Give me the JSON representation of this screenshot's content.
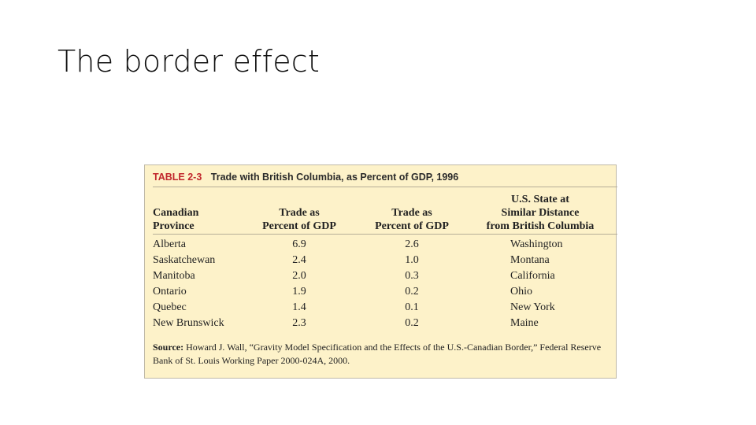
{
  "slide": {
    "title": "The border effect"
  },
  "table": {
    "label": "TABLE 2-3",
    "title": "Trade with British Columbia, as Percent of GDP, 1996",
    "columns": [
      [
        "Canadian",
        "Province"
      ],
      [
        "Trade as",
        "Percent of GDP"
      ],
      [
        "Trade as",
        "Percent of GDP"
      ],
      [
        "U.S. State at",
        "Similar Distance",
        "from British Columbia"
      ]
    ],
    "rows": [
      [
        "Alberta",
        "6.9",
        "2.6",
        "Washington"
      ],
      [
        "Saskatchewan",
        "2.4",
        "1.0",
        "Montana"
      ],
      [
        "Manitoba",
        "2.0",
        "0.3",
        "California"
      ],
      [
        "Ontario",
        "1.9",
        "0.2",
        "Ohio"
      ],
      [
        "Quebec",
        "1.4",
        "0.1",
        "New York"
      ],
      [
        "New Brunswick",
        "2.3",
        "0.2",
        "Maine"
      ]
    ],
    "source_label": "Source:",
    "source_text": "Howard J. Wall, “Gravity Model Specification and the Effects of the U.S.-Canadian Border,” Federal Reserve Bank of St. Louis Working Paper 2000-024A, 2000."
  }
}
